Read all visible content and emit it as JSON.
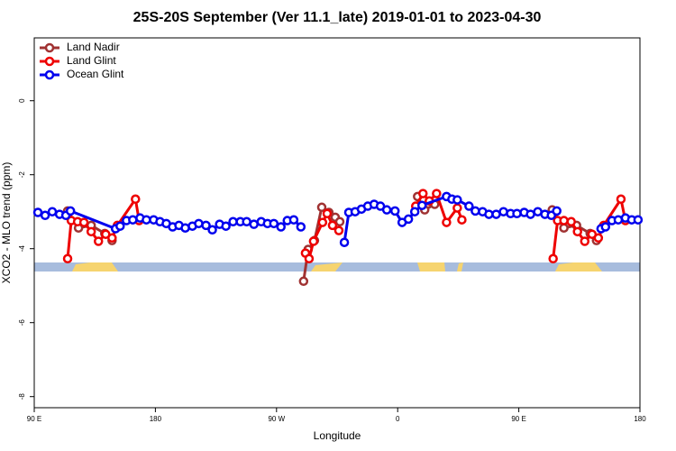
{
  "chart_data": {
    "type": "line",
    "title": "25S-20S September (Ver 11.1_late)   2019-01-01 to 2023-04-30",
    "xlabel": "Longitude",
    "ylabel": "XCO2 - MLO trend (ppm)",
    "xlim": [
      90,
      540
    ],
    "ylim": [
      -8.3,
      1.7
    ],
    "xticks": [
      {
        "value": 90,
        "label": "90 E"
      },
      {
        "value": 180,
        "label": "180"
      },
      {
        "value": 270,
        "label": "90 W"
      },
      {
        "value": 360,
        "label": "0"
      },
      {
        "value": 450,
        "label": "90 E"
      },
      {
        "value": 540,
        "label": "180"
      }
    ],
    "yticks": [
      0,
      -2,
      -4,
      -6,
      -8
    ],
    "legend": "top-left",
    "series": [
      {
        "name": "Land Nadir",
        "color": "#a03232",
        "x": [
          114.8,
          122.9,
          132.3,
          142.4,
          147.8,
          null,
          290.1,
          293.5,
          298.2,
          303.6,
          308.9,
          313.6,
          317.0,
          null,
          374.8,
          380.1,
          387.5,
          null,
          474.8,
          483.5,
          492.9,
          503.0,
          507.7
        ],
        "values": [
          -2.98,
          -3.44,
          -3.37,
          -3.59,
          -3.78,
          null,
          -4.88,
          -4.02,
          -3.78,
          -2.88,
          -3.02,
          -3.15,
          -3.27,
          null,
          -2.59,
          -2.95,
          -2.8,
          null,
          -2.95,
          -3.44,
          -3.37,
          -3.59,
          -3.78
        ]
      },
      {
        "name": "Land Glint",
        "color": "#ee0000",
        "x": [
          114.8,
          117.5,
          122.2,
          126.9,
          132.3,
          137.7,
          143.1,
          147.8,
          151.8,
          165.2,
          167.9,
          null,
          291.5,
          294.2,
          297.5,
          304.2,
          307.6,
          311.6,
          316.3,
          null,
          373.4,
          378.8,
          383.5,
          388.9,
          396.3,
          404.3,
          407.7,
          null,
          475.5,
          478.8,
          483.5,
          488.9,
          493.6,
          499.0,
          504.4,
          509.1,
          513.1,
          525.9,
          529.2
        ],
        "values": [
          -4.27,
          -3.24,
          -3.27,
          -3.29,
          -3.54,
          -3.8,
          -3.61,
          -3.71,
          -3.37,
          -2.66,
          -3.24,
          null,
          -4.12,
          -4.27,
          -3.8,
          -3.29,
          -3.05,
          -3.37,
          -3.51,
          null,
          -2.85,
          -2.51,
          -2.71,
          -2.51,
          -3.29,
          -2.9,
          -3.22,
          null,
          -4.27,
          -3.24,
          -3.24,
          -3.27,
          -3.54,
          -3.8,
          -3.61,
          -3.71,
          -3.37,
          -2.66,
          -3.24
        ]
      },
      {
        "name": "Ocean Glint",
        "color": "#0000ee",
        "x": [
          92.7,
          98.1,
          103.4,
          108.8,
          113.5,
          116.9,
          150.4,
          153.8,
          158.5,
          163.2,
          168.6,
          173.3,
          178.7,
          183.4,
          188.1,
          192.8,
          197.5,
          202.2,
          207.5,
          212.2,
          217.6,
          222.3,
          227.7,
          232.4,
          237.7,
          243.1,
          247.8,
          253.2,
          258.6,
          263.3,
          268.0,
          273.3,
          278.0,
          282.8,
          288.1,
          null,
          320.4,
          323.7,
          328.4,
          333.1,
          337.8,
          342.5,
          347.2,
          351.9,
          358.0,
          363.3,
          368.0,
          372.7,
          378.1,
          396.3,
          400.3,
          404.3,
          413.0,
          417.7,
          423.1,
          427.8,
          433.2,
          438.6,
          443.9,
          448.6,
          454.0,
          458.7,
          464.1,
          469.4,
          474.2,
          478.2,
          null,
          511.1,
          514.4,
          519.2,
          523.9,
          529.2,
          533.9,
          538.6
        ],
        "values": [
          -3.02,
          -3.1,
          -3.0,
          -3.07,
          -3.1,
          -2.98,
          -3.46,
          -3.39,
          -3.24,
          -3.22,
          -3.17,
          -3.22,
          -3.22,
          -3.27,
          -3.32,
          -3.41,
          -3.37,
          -3.44,
          -3.39,
          -3.32,
          -3.37,
          -3.49,
          -3.34,
          -3.39,
          -3.27,
          -3.27,
          -3.27,
          -3.34,
          -3.27,
          -3.32,
          -3.32,
          -3.41,
          -3.24,
          -3.22,
          -3.41,
          null,
          -3.83,
          -3.02,
          -3.0,
          -2.93,
          -2.85,
          -2.8,
          -2.85,
          -2.95,
          -2.98,
          -3.29,
          -3.2,
          -3.0,
          -2.83,
          -2.59,
          -2.66,
          -2.68,
          -2.85,
          -2.98,
          -3.0,
          -3.07,
          -3.07,
          -3.0,
          -3.05,
          -3.05,
          -3.02,
          -3.07,
          -3.0,
          -3.07,
          -3.1,
          -2.98,
          null,
          -3.46,
          -3.41,
          -3.24,
          -3.22,
          -3.17,
          -3.22,
          -3.22
        ]
      }
    ]
  }
}
